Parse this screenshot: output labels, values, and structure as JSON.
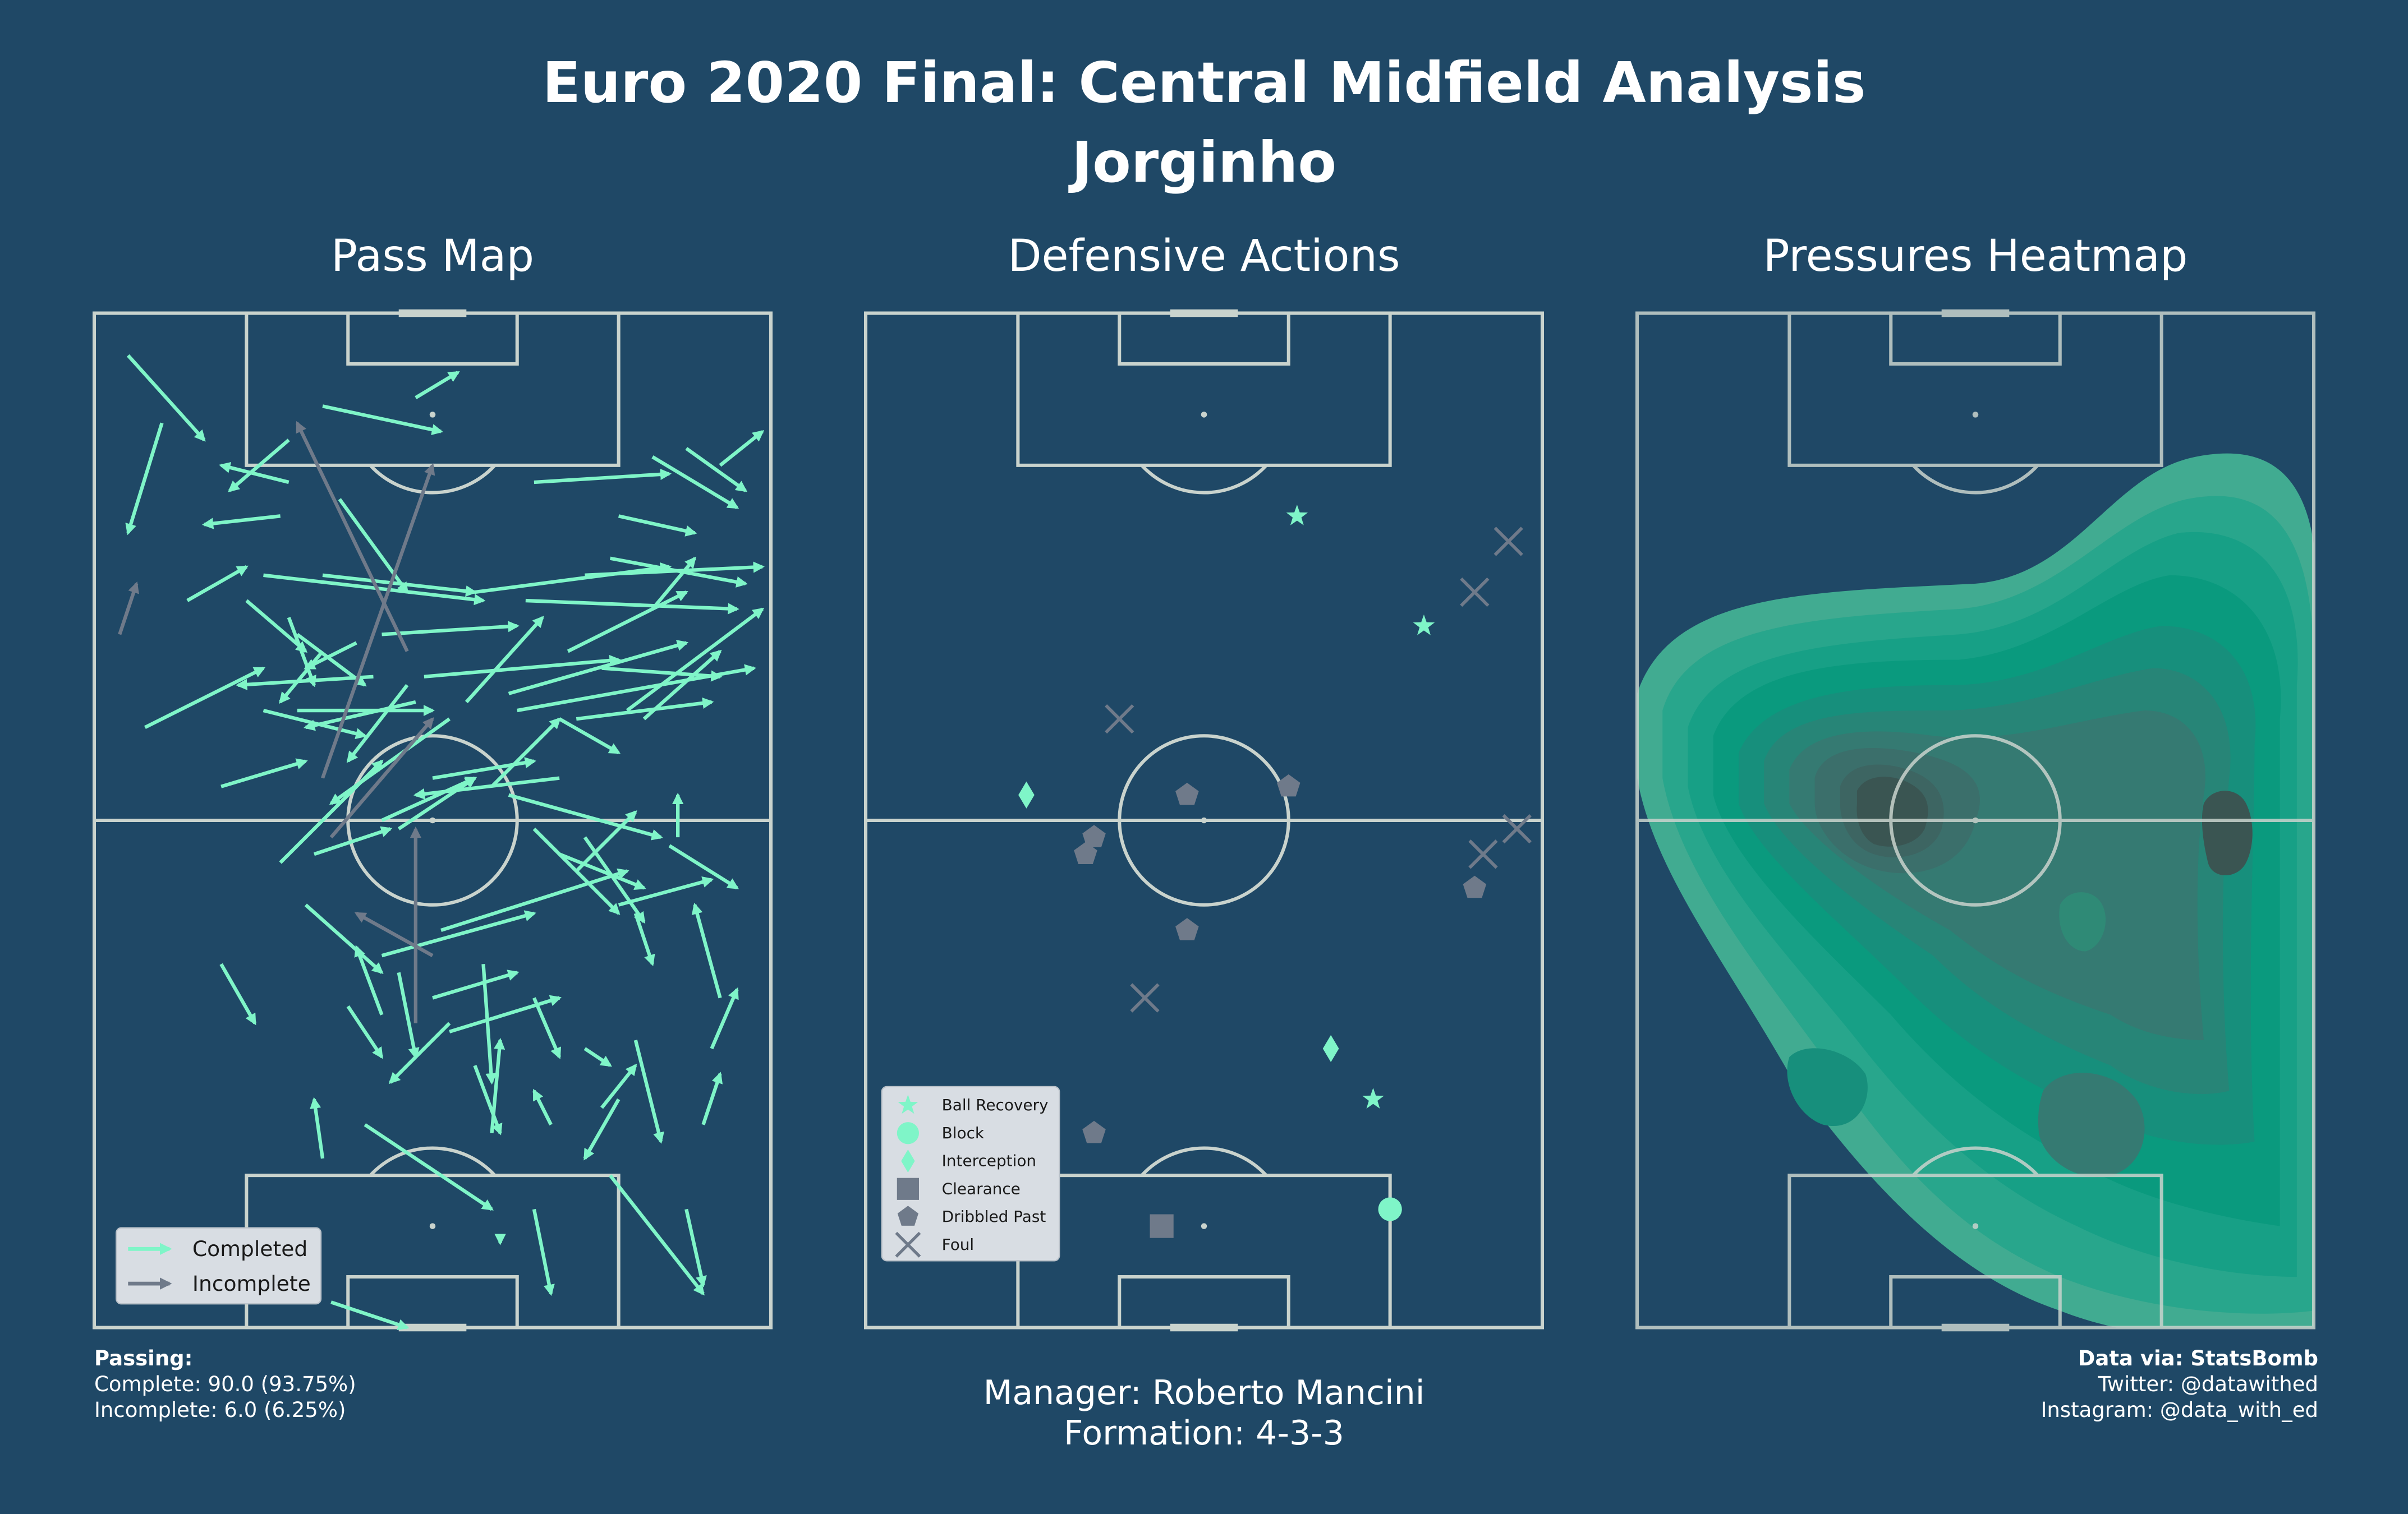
{
  "title": "Euro 2020 Final: Central Midfield Analysis",
  "subtitle": "Jorginho",
  "colors": {
    "background": "#1f4866",
    "lines": "#c9d3cd",
    "completed": "#7ff5c8",
    "incomplete": "#6f7a8a",
    "heat_light": "#41ab91",
    "heat_mid": "#0a9a7e",
    "heat_dark": "#3a5552"
  },
  "panels": {
    "pass_map": {
      "title": "Pass Map"
    },
    "defensive": {
      "title": "Defensive Actions"
    },
    "heatmap": {
      "title": "Pressures Heatmap"
    }
  },
  "pass_legend": {
    "completed": "Completed",
    "incomplete": "Incomplete"
  },
  "def_legend": {
    "ball_recovery": "Ball Recovery",
    "block": "Block",
    "interception": "Interception",
    "clearance": "Clearance",
    "dribbled_past": "Dribbled Past",
    "foul": "Foul"
  },
  "passing_stats": {
    "heading": "Passing:",
    "complete": "Complete: 90.0 (93.75%)",
    "incomplete": "Incomplete: 6.0 (6.25%)"
  },
  "manager": {
    "manager": "Manager: Roberto Mancini",
    "formation": "Formation: 4-3-3"
  },
  "credits": {
    "source": "Data via: StatsBomb",
    "twitter": "Twitter: @datawithed",
    "instagram": "Instagram: @data_with_ed"
  },
  "chart_data": [
    {
      "type": "scatter",
      "name": "Pass Map",
      "axes": "pitch width 0-80, length 0-120",
      "series": [
        {
          "name": "Completed",
          "passes": [
            [
              4,
              5,
              13,
              15
            ],
            [
              8,
              13,
              4,
              26
            ],
            [
              23,
              20,
              15,
              18
            ],
            [
              38,
              10,
              43,
              7
            ],
            [
              11,
              34,
              18,
              30
            ],
            [
              22,
              24,
              13,
              25
            ],
            [
              23,
              15,
              16,
              21
            ],
            [
              27,
              11,
              41,
              14
            ],
            [
              6,
              49,
              20,
              42
            ],
            [
              15,
              56,
              25,
              53
            ],
            [
              26,
              64,
              35,
              61
            ],
            [
              22,
              65,
              34,
              53
            ],
            [
              34,
              60,
              45,
              55
            ],
            [
              56,
              40,
              70,
              33
            ],
            [
              45,
              33,
              68,
              30
            ],
            [
              66,
              35,
              71,
              29
            ],
            [
              70,
              16,
              77,
              21
            ],
            [
              74,
              18,
              79,
              14
            ],
            [
              66,
              17,
              76,
              23
            ],
            [
              52,
              20,
              68,
              19
            ],
            [
              62,
              24,
              71,
              26
            ],
            [
              61,
              29,
              77,
              32
            ],
            [
              58,
              31,
              79,
              30
            ],
            [
              51,
              34,
              76,
              35
            ],
            [
              60,
              42,
              74,
              43
            ],
            [
              57,
              48,
              73,
              46
            ],
            [
              49,
              45,
              70,
              39
            ],
            [
              63,
              47,
              79,
              35
            ],
            [
              65,
              48,
              74,
              40
            ],
            [
              50,
              47,
              78,
              42
            ],
            [
              29,
              22,
              37,
              33
            ],
            [
              18,
              34,
              25,
              40
            ],
            [
              23,
              36,
              26,
              44
            ],
            [
              24,
              38,
              32,
              44
            ],
            [
              27,
              40,
              22,
              46
            ],
            [
              31,
              39,
              25,
              42
            ],
            [
              33,
              43,
              17,
              44
            ],
            [
              38,
              46,
              25,
              49
            ],
            [
              42,
              48,
              28,
              58
            ],
            [
              37,
              44,
              30,
              53
            ],
            [
              27,
              31,
              45,
              33
            ],
            [
              20,
              31,
              46,
              34
            ],
            [
              34,
              38,
              50,
              37
            ],
            [
              39,
              43,
              62,
              41
            ],
            [
              44,
              46,
              53,
              36
            ],
            [
              40,
              55,
              52,
              53
            ],
            [
              47,
              56,
              55,
              48
            ],
            [
              36,
              61,
              45,
              55
            ],
            [
              55,
              48,
              62,
              52
            ],
            [
              49,
              57,
              67,
              62
            ],
            [
              52,
              61,
              62,
              71
            ],
            [
              55,
              64,
              65,
              68
            ],
            [
              57,
              66,
              64,
              59
            ],
            [
              58,
              62,
              65,
              72
            ],
            [
              62,
              70,
              73,
              67
            ],
            [
              68,
              63,
              76,
              68
            ],
            [
              69,
              62,
              69,
              57
            ],
            [
              41,
              73,
              63,
              66
            ],
            [
              34,
              76,
              52,
              71
            ],
            [
              40,
              81,
              50,
              78
            ],
            [
              42,
              85,
              55,
              81
            ],
            [
              34,
              83,
              31,
              75
            ],
            [
              42,
              84,
              35,
              91
            ],
            [
              45,
              89,
              48,
              97
            ],
            [
              25,
              70,
              34,
              78
            ],
            [
              27,
              100,
              26,
              93
            ],
            [
              36,
              78,
              38,
              88
            ],
            [
              46,
              77,
              47,
              91
            ],
            [
              52,
              81,
              55,
              88
            ],
            [
              60,
              94,
              64,
              89
            ],
            [
              54,
              96,
              52,
              92
            ],
            [
              62,
              93,
              58,
              100
            ],
            [
              58,
              87,
              61,
              89
            ],
            [
              64,
              86,
              67,
              98
            ],
            [
              72,
              96,
              74,
              90
            ],
            [
              73,
              87,
              76,
              80
            ],
            [
              74,
              81,
              71,
              70
            ],
            [
              64,
              71,
              66,
              77
            ],
            [
              47,
              97,
              48,
              86
            ],
            [
              32,
              96,
              47,
              106
            ],
            [
              52,
              106,
              54,
              116
            ],
            [
              70,
              106,
              72,
              115
            ],
            [
              48,
              109,
              48,
              110
            ],
            [
              61,
              102,
              72,
              116
            ],
            [
              28,
              117,
              37,
              120
            ],
            [
              30,
              82,
              34,
              88
            ],
            [
              15,
              77,
              19,
              84
            ],
            [
              20,
              47,
              32,
              50
            ],
            [
              24,
              47,
              40,
              47
            ],
            [
              55,
              55,
              38,
              57
            ]
          ]
        },
        {
          "name": "Incomplete",
          "passes": [
            [
              3,
              38,
              5,
              32
            ],
            [
              37,
              40,
              24,
              13
            ],
            [
              27,
              55,
              40,
              18
            ],
            [
              28,
              62,
              40,
              48
            ],
            [
              38,
              84,
              38,
              61
            ],
            [
              40,
              76,
              31,
              71
            ]
          ]
        }
      ]
    },
    {
      "type": "scatter",
      "name": "Defensive Actions",
      "axes": "pitch width 0-80, length 0-120",
      "series": [
        {
          "name": "Ball Recovery",
          "points": [
            [
              51,
              24
            ],
            [
              66,
              37
            ],
            [
              60,
              93
            ]
          ]
        },
        {
          "name": "Block",
          "points": [
            [
              62,
              106
            ]
          ]
        },
        {
          "name": "Interception",
          "points": [
            [
              19,
              57
            ],
            [
              55,
              87
            ]
          ]
        },
        {
          "name": "Clearance",
          "points": [
            [
              35,
              108
            ]
          ]
        },
        {
          "name": "Dribbled Past",
          "points": [
            [
              27,
              62
            ],
            [
              38,
              57
            ],
            [
              50,
              56
            ],
            [
              26,
              64
            ],
            [
              72,
              68
            ],
            [
              38,
              73
            ],
            [
              27,
              97
            ]
          ]
        },
        {
          "name": "Foul",
          "points": [
            [
              76,
              27
            ],
            [
              72,
              33
            ],
            [
              30,
              48
            ],
            [
              77,
              61
            ],
            [
              73,
              64
            ],
            [
              33,
              81
            ]
          ]
        }
      ]
    },
    {
      "type": "heatmap",
      "name": "Pressures Heatmap",
      "axes": "pitch width 0-80, length 0-120",
      "density_peaks": [
        [
          35,
          57
        ],
        [
          69,
          62
        ],
        [
          54,
          71
        ],
        [
          54,
          97
        ],
        [
          23,
          92
        ]
      ]
    }
  ]
}
